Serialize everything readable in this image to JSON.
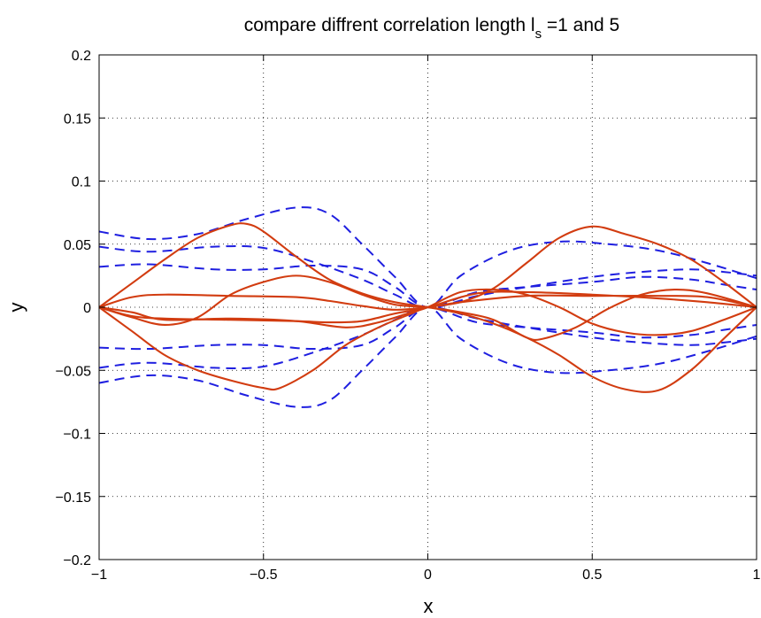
{
  "chart_data": {
    "type": "line",
    "title_main": "compare diffrent correlation length l",
    "title_sub": "s",
    "title_tail": " =1 and 5",
    "xlabel": "x",
    "ylabel": "y",
    "xlim": [
      -1,
      1
    ],
    "ylim": [
      -0.2,
      0.2
    ],
    "xticks": [
      -1,
      -0.5,
      0,
      0.5,
      1
    ],
    "xtick_labels": [
      "−1",
      "−0.5",
      "0",
      "0.5",
      "1"
    ],
    "yticks": [
      -0.2,
      -0.15,
      -0.1,
      -0.05,
      0,
      0.05,
      0.1,
      0.15,
      0.2
    ],
    "ytick_labels": [
      "−0.2",
      "−0.15",
      "−0.1",
      "−0.05",
      "0",
      "0.05",
      "0.1",
      "0.15",
      "0.2"
    ],
    "grid": true,
    "colors": {
      "solid": "#d23c10",
      "dashed": "#1f1fe0"
    },
    "series": [
      {
        "style": "dashed",
        "points": [
          [
            -1,
            0.06
          ],
          [
            -0.85,
            0.054
          ],
          [
            -0.7,
            0.058
          ],
          [
            -0.55,
            0.07
          ],
          [
            -0.4,
            0.079
          ],
          [
            -0.3,
            0.074
          ],
          [
            -0.2,
            0.05
          ],
          [
            -0.1,
            0.024
          ],
          [
            0,
            0
          ],
          [
            0.1,
            0.025
          ],
          [
            0.25,
            0.045
          ],
          [
            0.4,
            0.052
          ],
          [
            0.55,
            0.05
          ],
          [
            0.7,
            0.045
          ],
          [
            0.85,
            0.035
          ],
          [
            1,
            0.023
          ]
        ]
      },
      {
        "style": "dashed",
        "points": [
          [
            -1,
            0.048
          ],
          [
            -0.85,
            0.044
          ],
          [
            -0.65,
            0.048
          ],
          [
            -0.5,
            0.047
          ],
          [
            -0.35,
            0.036
          ],
          [
            -0.2,
            0.022
          ],
          [
            -0.1,
            0.01
          ],
          [
            0,
            0
          ],
          [
            0.15,
            0.012
          ],
          [
            0.3,
            0.016
          ],
          [
            0.5,
            0.02
          ],
          [
            0.65,
            0.024
          ],
          [
            0.8,
            0.022
          ],
          [
            0.9,
            0.018
          ],
          [
            1,
            0.014
          ]
        ]
      },
      {
        "style": "dashed",
        "points": [
          [
            -1,
            0.032
          ],
          [
            -0.85,
            0.034
          ],
          [
            -0.65,
            0.03
          ],
          [
            -0.5,
            0.03
          ],
          [
            -0.35,
            0.033
          ],
          [
            -0.2,
            0.03
          ],
          [
            -0.1,
            0.016
          ],
          [
            0,
            0
          ],
          [
            0.15,
            0.009
          ],
          [
            0.3,
            0.016
          ],
          [
            0.5,
            0.024
          ],
          [
            0.65,
            0.028
          ],
          [
            0.8,
            0.03
          ],
          [
            0.9,
            0.028
          ],
          [
            1,
            0.025
          ]
        ]
      },
      {
        "style": "dashed",
        "points": [
          [
            -1,
            -0.032
          ],
          [
            -0.85,
            -0.033
          ],
          [
            -0.65,
            -0.03
          ],
          [
            -0.5,
            -0.03
          ],
          [
            -0.35,
            -0.033
          ],
          [
            -0.2,
            -0.03
          ],
          [
            -0.1,
            -0.016
          ],
          [
            0,
            0
          ],
          [
            0.15,
            -0.009
          ],
          [
            0.3,
            -0.016
          ],
          [
            0.5,
            -0.024
          ],
          [
            0.65,
            -0.028
          ],
          [
            0.8,
            -0.03
          ],
          [
            0.9,
            -0.028
          ],
          [
            1,
            -0.025
          ]
        ]
      },
      {
        "style": "dashed",
        "points": [
          [
            -1,
            -0.048
          ],
          [
            -0.85,
            -0.044
          ],
          [
            -0.65,
            -0.048
          ],
          [
            -0.5,
            -0.047
          ],
          [
            -0.35,
            -0.036
          ],
          [
            -0.2,
            -0.022
          ],
          [
            -0.1,
            -0.01
          ],
          [
            0,
            0
          ],
          [
            0.15,
            -0.012
          ],
          [
            0.3,
            -0.016
          ],
          [
            0.5,
            -0.02
          ],
          [
            0.65,
            -0.024
          ],
          [
            0.8,
            -0.022
          ],
          [
            0.9,
            -0.018
          ],
          [
            1,
            -0.014
          ]
        ]
      },
      {
        "style": "dashed",
        "points": [
          [
            -1,
            -0.06
          ],
          [
            -0.85,
            -0.054
          ],
          [
            -0.7,
            -0.058
          ],
          [
            -0.55,
            -0.07
          ],
          [
            -0.4,
            -0.079
          ],
          [
            -0.3,
            -0.074
          ],
          [
            -0.2,
            -0.05
          ],
          [
            -0.1,
            -0.024
          ],
          [
            0,
            0
          ],
          [
            0.1,
            -0.025
          ],
          [
            0.25,
            -0.045
          ],
          [
            0.4,
            -0.052
          ],
          [
            0.55,
            -0.05
          ],
          [
            0.7,
            -0.045
          ],
          [
            0.85,
            -0.035
          ],
          [
            1,
            -0.023
          ]
        ]
      },
      {
        "style": "solid",
        "points": [
          [
            -1,
            0
          ],
          [
            -0.9,
            0.019
          ],
          [
            -0.8,
            0.038
          ],
          [
            -0.7,
            0.055
          ],
          [
            -0.6,
            0.065
          ],
          [
            -0.55,
            0.066
          ],
          [
            -0.5,
            0.06
          ],
          [
            -0.4,
            0.04
          ],
          [
            -0.3,
            0.022
          ],
          [
            -0.2,
            0.011
          ],
          [
            -0.1,
            0.004
          ],
          [
            0,
            0
          ],
          [
            0.1,
            -0.005
          ],
          [
            0.2,
            -0.013
          ],
          [
            0.3,
            -0.024
          ],
          [
            0.4,
            -0.038
          ],
          [
            0.5,
            -0.055
          ],
          [
            0.6,
            -0.065
          ],
          [
            0.7,
            -0.066
          ],
          [
            0.8,
            -0.05
          ],
          [
            0.9,
            -0.025
          ],
          [
            1,
            0
          ]
        ]
      },
      {
        "style": "solid",
        "points": [
          [
            -1,
            0
          ],
          [
            -0.9,
            -0.019
          ],
          [
            -0.8,
            -0.038
          ],
          [
            -0.7,
            -0.05
          ],
          [
            -0.6,
            -0.058
          ],
          [
            -0.5,
            -0.064
          ],
          [
            -0.45,
            -0.064
          ],
          [
            -0.35,
            -0.05
          ],
          [
            -0.25,
            -0.03
          ],
          [
            -0.15,
            -0.016
          ],
          [
            -0.05,
            -0.005
          ],
          [
            0,
            0
          ],
          [
            0.1,
            0.004
          ],
          [
            0.2,
            0.015
          ],
          [
            0.3,
            0.035
          ],
          [
            0.4,
            0.055
          ],
          [
            0.5,
            0.064
          ],
          [
            0.6,
            0.058
          ],
          [
            0.7,
            0.05
          ],
          [
            0.8,
            0.038
          ],
          [
            0.9,
            0.02
          ],
          [
            1,
            0
          ]
        ]
      },
      {
        "style": "solid",
        "points": [
          [
            -1,
            0
          ],
          [
            -0.9,
            0.008
          ],
          [
            -0.8,
            0.01
          ],
          [
            -0.6,
            0.009
          ],
          [
            -0.4,
            0.008
          ],
          [
            -0.3,
            0.005
          ],
          [
            -0.2,
            0.001
          ],
          [
            -0.1,
            -0.002
          ],
          [
            0,
            0
          ],
          [
            0.1,
            0.004
          ],
          [
            0.3,
            0.009
          ],
          [
            0.5,
            0.009
          ],
          [
            0.7,
            0.009
          ],
          [
            0.85,
            0.008
          ],
          [
            1,
            0
          ]
        ]
      },
      {
        "style": "solid",
        "points": [
          [
            -1,
            0
          ],
          [
            -0.9,
            -0.007
          ],
          [
            -0.8,
            -0.009
          ],
          [
            -0.6,
            -0.01
          ],
          [
            -0.4,
            -0.011
          ],
          [
            -0.3,
            -0.012
          ],
          [
            -0.2,
            -0.011
          ],
          [
            -0.1,
            -0.005
          ],
          [
            0,
            0
          ],
          [
            0.15,
            0.011
          ],
          [
            0.3,
            0.012
          ],
          [
            0.5,
            0.01
          ],
          [
            0.7,
            0.007
          ],
          [
            0.85,
            0.004
          ],
          [
            1,
            0
          ]
        ]
      },
      {
        "style": "solid",
        "points": [
          [
            -1,
            0
          ],
          [
            -0.9,
            -0.008
          ],
          [
            -0.8,
            -0.014
          ],
          [
            -0.7,
            -0.008
          ],
          [
            -0.6,
            0.01
          ],
          [
            -0.5,
            0.02
          ],
          [
            -0.4,
            0.025
          ],
          [
            -0.3,
            0.02
          ],
          [
            -0.2,
            0.01
          ],
          [
            -0.1,
            0.002
          ],
          [
            0,
            0
          ],
          [
            0.1,
            -0.004
          ],
          [
            0.2,
            -0.01
          ],
          [
            0.3,
            -0.024
          ],
          [
            0.35,
            -0.025
          ],
          [
            0.45,
            -0.016
          ],
          [
            0.55,
            -0.001
          ],
          [
            0.65,
            0.01
          ],
          [
            0.75,
            0.014
          ],
          [
            0.85,
            0.011
          ],
          [
            1,
            0
          ]
        ]
      },
      {
        "style": "solid",
        "points": [
          [
            -1,
            0
          ],
          [
            -0.9,
            -0.004
          ],
          [
            -0.8,
            -0.01
          ],
          [
            -0.6,
            -0.009
          ],
          [
            -0.4,
            -0.011
          ],
          [
            -0.25,
            -0.016
          ],
          [
            -0.15,
            -0.012
          ],
          [
            -0.05,
            -0.004
          ],
          [
            0,
            0
          ],
          [
            0.1,
            0.012
          ],
          [
            0.2,
            0.014
          ],
          [
            0.3,
            0.01
          ],
          [
            0.4,
            0
          ],
          [
            0.5,
            -0.013
          ],
          [
            0.6,
            -0.02
          ],
          [
            0.7,
            -0.022
          ],
          [
            0.8,
            -0.019
          ],
          [
            0.9,
            -0.01
          ],
          [
            1,
            0
          ]
        ]
      }
    ]
  }
}
